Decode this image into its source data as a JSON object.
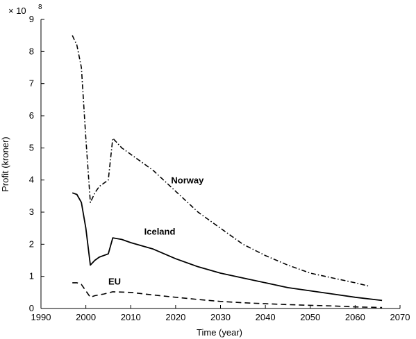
{
  "chart_data": {
    "type": "line",
    "title": "",
    "xlabel": "Time (year)",
    "ylabel": "Profit (kroner)",
    "y_exponent_label": "× 10",
    "y_exponent_power": "8",
    "xlim": [
      1990,
      2070
    ],
    "ylim": [
      0,
      9
    ],
    "x_ticks": [
      "1990",
      "2000",
      "2010",
      "2020",
      "2030",
      "2040",
      "2050",
      "2060",
      "2070"
    ],
    "y_ticks": [
      "0",
      "1",
      "2",
      "3",
      "4",
      "5",
      "6",
      "7",
      "8",
      "9"
    ],
    "grid": false,
    "series": [
      {
        "name": "Norway",
        "style": "dash-dot",
        "values": [
          [
            1997,
            8.5
          ],
          [
            1998,
            8.2
          ],
          [
            1999,
            7.5
          ],
          [
            2000,
            5.3
          ],
          [
            2001,
            3.3
          ],
          [
            2002,
            3.6
          ],
          [
            2003,
            3.8
          ],
          [
            2005,
            4.0
          ],
          [
            2006,
            5.3
          ],
          [
            2008,
            5.0
          ],
          [
            2010,
            4.8
          ],
          [
            2012,
            4.6
          ],
          [
            2015,
            4.3
          ],
          [
            2020,
            3.65
          ],
          [
            2025,
            3.0
          ],
          [
            2030,
            2.5
          ],
          [
            2035,
            2.0
          ],
          [
            2040,
            1.65
          ],
          [
            2045,
            1.35
          ],
          [
            2050,
            1.1
          ],
          [
            2055,
            0.95
          ],
          [
            2060,
            0.8
          ],
          [
            2063,
            0.7
          ]
        ]
      },
      {
        "name": "Iceland",
        "style": "solid",
        "values": [
          [
            1997,
            3.6
          ],
          [
            1998,
            3.55
          ],
          [
            1999,
            3.3
          ],
          [
            2000,
            2.5
          ],
          [
            2001,
            1.35
          ],
          [
            2002,
            1.5
          ],
          [
            2003,
            1.6
          ],
          [
            2005,
            1.7
          ],
          [
            2006,
            2.2
          ],
          [
            2008,
            2.15
          ],
          [
            2010,
            2.05
          ],
          [
            2015,
            1.85
          ],
          [
            2020,
            1.55
          ],
          [
            2025,
            1.3
          ],
          [
            2030,
            1.1
          ],
          [
            2035,
            0.95
          ],
          [
            2040,
            0.8
          ],
          [
            2045,
            0.65
          ],
          [
            2050,
            0.55
          ],
          [
            2055,
            0.45
          ],
          [
            2060,
            0.35
          ],
          [
            2066,
            0.25
          ]
        ]
      },
      {
        "name": "EU",
        "style": "dashed",
        "values": [
          [
            1997,
            0.8
          ],
          [
            1998,
            0.8
          ],
          [
            1999,
            0.75
          ],
          [
            2000,
            0.55
          ],
          [
            2001,
            0.35
          ],
          [
            2002,
            0.4
          ],
          [
            2004,
            0.45
          ],
          [
            2006,
            0.52
          ],
          [
            2010,
            0.5
          ],
          [
            2015,
            0.42
          ],
          [
            2020,
            0.35
          ],
          [
            2025,
            0.28
          ],
          [
            2030,
            0.22
          ],
          [
            2035,
            0.18
          ],
          [
            2040,
            0.15
          ],
          [
            2045,
            0.12
          ],
          [
            2050,
            0.1
          ],
          [
            2055,
            0.08
          ],
          [
            2060,
            0.05
          ],
          [
            2066,
            0.03
          ]
        ]
      }
    ],
    "annotations": [
      {
        "text": "Norway",
        "x": 2019,
        "y": 3.9
      },
      {
        "text": "Iceland",
        "x": 2013,
        "y": 2.3
      },
      {
        "text": "EU",
        "x": 2005,
        "y": 0.75
      }
    ]
  }
}
